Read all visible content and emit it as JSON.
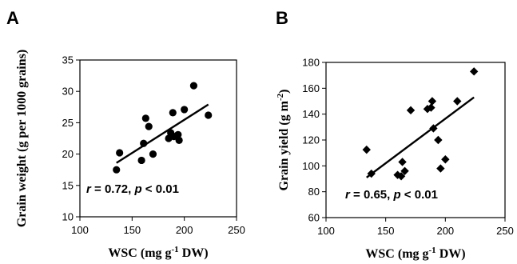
{
  "chart_data": [
    {
      "type": "scatter",
      "panel_label": "A",
      "xlabel": "WSC (mg g",
      "xlabel_sup": "-1",
      "xlabel_tail": " DW)",
      "ylabel": "Grain weight (g per 1000 grains)",
      "ylabel_sup": "",
      "ylabel_tail": "",
      "xlim": [
        100,
        250
      ],
      "ylim": [
        10,
        35
      ],
      "xticks": [
        "100",
        "150",
        "200",
        "250"
      ],
      "yticks": [
        "10",
        "15",
        "20",
        "25",
        "30",
        "35"
      ],
      "annotation": {
        "r_prefix": "r",
        "r_text": " = 0.72, ",
        "p_prefix": "p",
        "p_text": " < 0.01"
      },
      "marker": "circle",
      "points": [
        {
          "x": 135,
          "y": 17.5
        },
        {
          "x": 138,
          "y": 20.2
        },
        {
          "x": 159,
          "y": 19.0
        },
        {
          "x": 161,
          "y": 21.7
        },
        {
          "x": 163,
          "y": 25.7
        },
        {
          "x": 166,
          "y": 24.4
        },
        {
          "x": 170,
          "y": 20.0
        },
        {
          "x": 185,
          "y": 22.5
        },
        {
          "x": 187,
          "y": 23.4
        },
        {
          "x": 189,
          "y": 26.6
        },
        {
          "x": 190,
          "y": 22.8
        },
        {
          "x": 194,
          "y": 23.1
        },
        {
          "x": 195,
          "y": 22.2
        },
        {
          "x": 200,
          "y": 27.1
        },
        {
          "x": 209,
          "y": 30.9
        },
        {
          "x": 223,
          "y": 26.2
        }
      ],
      "trendline": [
        [
          135,
          18.6
        ],
        [
          223,
          27.9
        ]
      ]
    },
    {
      "type": "scatter",
      "panel_label": "B",
      "xlabel": "WSC (mg g",
      "xlabel_sup": "-1",
      "xlabel_tail": " DW)",
      "ylabel": "Grain yield (g m",
      "ylabel_sup": "-2",
      "ylabel_tail": ")",
      "xlim": [
        100,
        250
      ],
      "ylim": [
        60,
        180
      ],
      "xticks": [
        "100",
        "150",
        "200",
        "250"
      ],
      "yticks": [
        "60",
        "80",
        "100",
        "120",
        "140",
        "160",
        "180"
      ],
      "annotation": {
        "r_prefix": "r",
        "r_text": " = 0.65, ",
        "p_prefix": "p",
        "p_text": " < 0.01"
      },
      "marker": "diamond",
      "points": [
        {
          "x": 134,
          "y": 112.5
        },
        {
          "x": 138,
          "y": 94
        },
        {
          "x": 160,
          "y": 93
        },
        {
          "x": 163,
          "y": 92
        },
        {
          "x": 164,
          "y": 103
        },
        {
          "x": 166,
          "y": 96
        },
        {
          "x": 171,
          "y": 143
        },
        {
          "x": 185,
          "y": 144
        },
        {
          "x": 188,
          "y": 145
        },
        {
          "x": 189,
          "y": 150
        },
        {
          "x": 190,
          "y": 129
        },
        {
          "x": 194,
          "y": 120
        },
        {
          "x": 196,
          "y": 98
        },
        {
          "x": 200,
          "y": 105
        },
        {
          "x": 210,
          "y": 150
        },
        {
          "x": 224,
          "y": 173
        }
      ],
      "trendline": [
        [
          134,
          91
        ],
        [
          224,
          153
        ]
      ]
    }
  ]
}
